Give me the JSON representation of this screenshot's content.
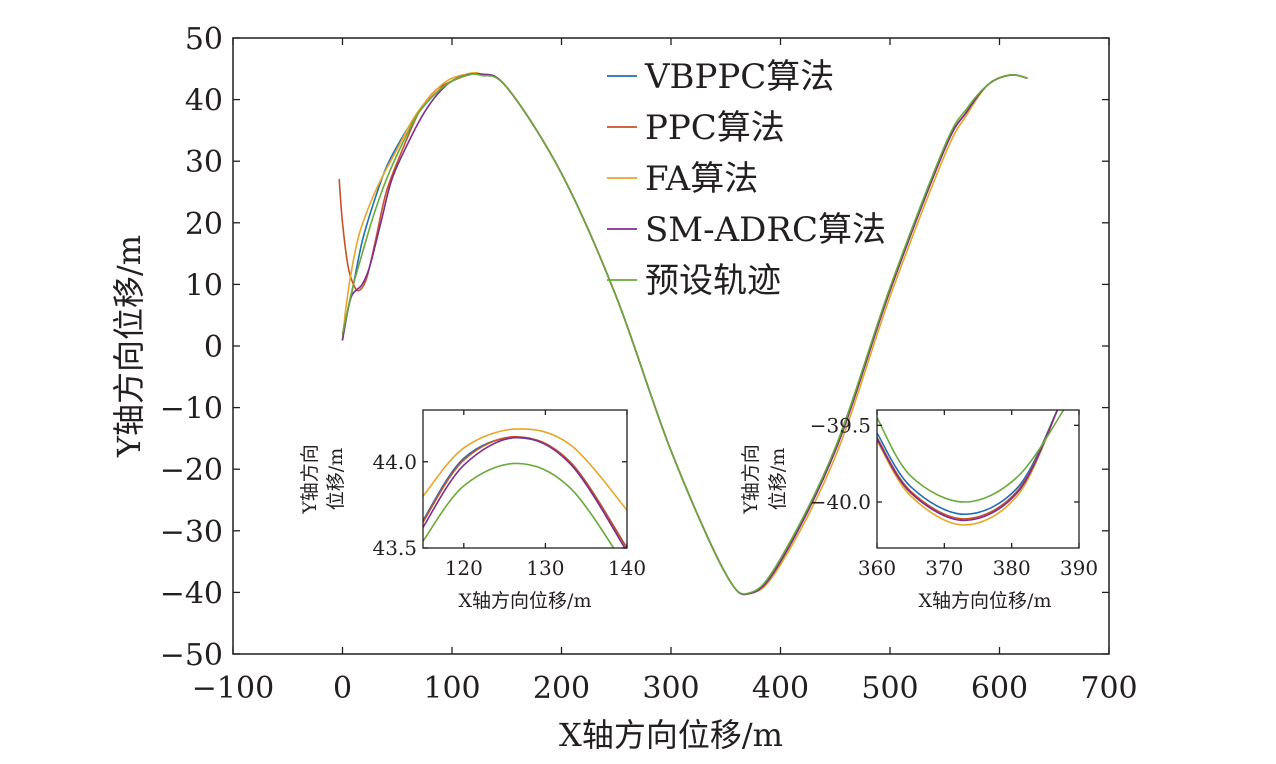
{
  "chart_data": [
    {
      "type": "line",
      "xlabel": "X轴方向位移/m",
      "ylabel": "Y轴方向位移/m",
      "xlim": [
        -100,
        700
      ],
      "ylim": [
        -50,
        50
      ],
      "xticks": [
        -100,
        0,
        100,
        200,
        300,
        400,
        500,
        600,
        700
      ],
      "yticks": [
        -50,
        -40,
        -30,
        -20,
        -10,
        0,
        10,
        20,
        30,
        40,
        50
      ],
      "xtick_labels": [
        "−100",
        "0",
        "100",
        "200",
        "300",
        "400",
        "500",
        "600",
        "700"
      ],
      "ytick_labels": [
        "−50",
        "−40",
        "−30",
        "−20",
        "−10",
        "0",
        "10",
        "20",
        "30",
        "40",
        "50"
      ],
      "grid": false,
      "legend_position": "top-right",
      "series": [
        {
          "name": "VBPPC算法",
          "color": "#1f6fb5",
          "x": [
            0,
            5,
            10,
            18,
            28,
            40,
            55,
            70,
            85,
            100,
            115,
            126,
            150,
            200,
            250,
            300,
            350,
            373,
            400,
            450,
            500,
            550,
            570,
            590,
            610,
            625
          ],
          "y": [
            1,
            6,
            10,
            17,
            23,
            29,
            34,
            38,
            41,
            43,
            44,
            44.1,
            42,
            28,
            8,
            -17,
            -37,
            -40.1,
            -35,
            -17,
            9,
            32,
            38,
            42.5,
            44,
            43.5
          ]
        },
        {
          "name": "PPC算法",
          "color": "#c8502a",
          "x": [
            -3,
            0,
            5,
            10,
            15,
            22,
            30,
            40,
            55,
            70,
            85,
            100,
            115,
            126,
            150,
            200,
            250,
            300,
            350,
            373,
            400,
            450,
            500,
            550,
            570,
            590,
            610,
            625
          ],
          "y": [
            27,
            20,
            13,
            10,
            9,
            11,
            17,
            25,
            32,
            38,
            41.5,
            43,
            44,
            44.15,
            42,
            28,
            8,
            -17,
            -37,
            -40.12,
            -35,
            -17,
            9,
            32,
            38,
            42.5,
            44,
            43.5
          ]
        },
        {
          "name": "FA算法",
          "color": "#e8a528",
          "x": [
            0,
            3,
            8,
            15,
            25,
            35,
            50,
            65,
            80,
            95,
            110,
            126,
            150,
            200,
            250,
            300,
            350,
            373,
            400,
            450,
            500,
            550,
            570,
            590,
            610,
            625
          ],
          "y": [
            1,
            6,
            12,
            18,
            23,
            27,
            32,
            37,
            40.5,
            43,
            44,
            44.2,
            42,
            28,
            8,
            -17,
            -37,
            -40.16,
            -35.5,
            -18,
            8,
            31,
            37.5,
            42.5,
            44,
            43.5
          ]
        },
        {
          "name": "SM-ADRC算法",
          "color": "#7b2f8e",
          "x": [
            0,
            4,
            8,
            12,
            18,
            25,
            35,
            45,
            60,
            75,
            90,
            105,
            126,
            150,
            200,
            250,
            300,
            350,
            373,
            400,
            450,
            500,
            550,
            570,
            590,
            610,
            625
          ],
          "y": [
            1,
            5,
            8,
            9,
            10,
            13,
            20,
            27,
            33,
            38,
            41.5,
            43.5,
            44.15,
            42,
            28,
            8,
            -17,
            -37,
            -40.13,
            -35,
            -17,
            9,
            32,
            38,
            42.5,
            44,
            43.5
          ]
        },
        {
          "name": "预设轨迹",
          "color": "#6aaa3a",
          "x": [
            0,
            5,
            10,
            18,
            28,
            40,
            55,
            70,
            85,
            100,
            115,
            126,
            150,
            200,
            250,
            300,
            350,
            373,
            400,
            450,
            500,
            550,
            570,
            590,
            610,
            625
          ],
          "y": [
            2,
            6,
            10,
            15,
            21,
            27,
            33,
            38,
            41,
            43,
            44,
            43.95,
            42,
            28,
            8,
            -17,
            -37,
            -40,
            -34.5,
            -16.5,
            9.5,
            32.5,
            38.5,
            42.5,
            44,
            43.5
          ]
        }
      ]
    },
    {
      "type": "line",
      "xlabel": "X轴方向位移/m",
      "ylabel": "Y轴方向位移/m",
      "xlim": [
        115,
        140
      ],
      "ylim": [
        43.5,
        44.3
      ],
      "xticks": [
        120,
        130,
        140
      ],
      "yticks": [
        43.5,
        44.0
      ],
      "xtick_labels": [
        "120",
        "130",
        "140"
      ],
      "ytick_labels": [
        "43.5",
        "44.0"
      ],
      "series": [
        {
          "name": "VBPPC算法",
          "color": "#1f6fb5",
          "x": [
            115,
            120,
            126.5,
            133,
            140
          ],
          "y": [
            43.66,
            44.02,
            44.14,
            44.0,
            43.5
          ]
        },
        {
          "name": "PPC算法",
          "color": "#c8502a",
          "x": [
            115,
            120,
            126.5,
            133,
            140
          ],
          "y": [
            43.65,
            44.01,
            44.145,
            44.0,
            43.5
          ]
        },
        {
          "name": "FA算法",
          "color": "#e8a528",
          "x": [
            115,
            120,
            126.5,
            133,
            140
          ],
          "y": [
            43.8,
            44.08,
            44.19,
            44.1,
            43.72
          ]
        },
        {
          "name": "SM-ADRC算法",
          "color": "#7b2f8e",
          "x": [
            115,
            120,
            126.5,
            133,
            140
          ],
          "y": [
            43.62,
            43.98,
            44.14,
            43.99,
            43.48
          ]
        },
        {
          "name": "预设轨迹",
          "color": "#6aaa3a",
          "x": [
            115,
            120,
            126.5,
            133,
            140
          ],
          "y": [
            43.54,
            43.86,
            43.99,
            43.85,
            43.38
          ]
        }
      ]
    },
    {
      "type": "line",
      "xlabel": "X轴方向位移/m",
      "ylabel": "Y轴方向位移/m",
      "xlim": [
        360,
        390
      ],
      "ylim": [
        -40.3,
        -39.4
      ],
      "xticks": [
        360,
        370,
        380,
        390
      ],
      "yticks": [
        -40.0,
        -39.5
      ],
      "xtick_labels": [
        "360",
        "370",
        "380",
        "390"
      ],
      "ytick_labels": [
        "−40.0",
        "−39.5"
      ],
      "series": [
        {
          "name": "VBPPC算法",
          "color": "#1f6fb5",
          "x": [
            360,
            365,
            373,
            381,
            387
          ],
          "y": [
            -39.55,
            -39.9,
            -40.08,
            -39.9,
            -39.38
          ]
        },
        {
          "name": "PPC算法",
          "color": "#c8502a",
          "x": [
            360,
            365,
            373,
            381,
            387
          ],
          "y": [
            -39.58,
            -39.93,
            -40.11,
            -39.92,
            -39.38
          ]
        },
        {
          "name": "FA算法",
          "color": "#e8a528",
          "x": [
            360,
            365,
            373,
            381,
            387
          ],
          "y": [
            -39.6,
            -39.96,
            -40.15,
            -39.95,
            -39.38
          ]
        },
        {
          "name": "SM-ADRC算法",
          "color": "#7b2f8e",
          "x": [
            360,
            365,
            373,
            381,
            387
          ],
          "y": [
            -39.59,
            -39.94,
            -40.12,
            -39.93,
            -39.38
          ]
        },
        {
          "name": "预设轨迹",
          "color": "#6aaa3a",
          "x": [
            360,
            365,
            373,
            381,
            388
          ],
          "y": [
            -39.45,
            -39.83,
            -40.0,
            -39.83,
            -39.38
          ]
        }
      ]
    }
  ],
  "inset_left": {
    "ylabel_line1": "Y轴方向",
    "ylabel_line2": "位移/m"
  },
  "inset_right": {
    "ylabel_line1": "Y轴方向",
    "ylabel_line2": "位移/m"
  }
}
